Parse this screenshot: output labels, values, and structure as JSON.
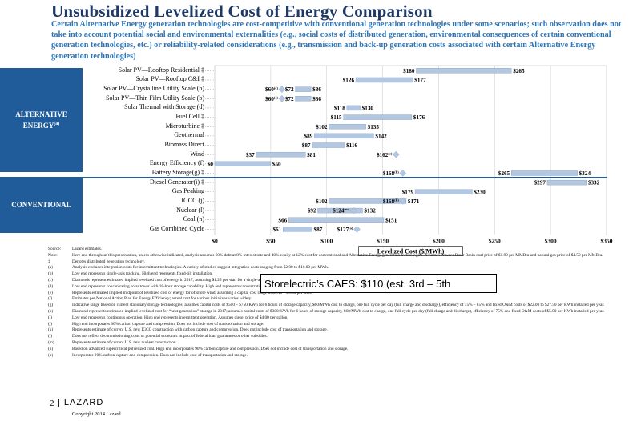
{
  "page": {
    "title": "Unsubsidized Levelized Cost of Energy Comparison",
    "subtitle": "Certain Alternative Energy generation technologies are cost-competitive with conventional generation technologies under some scenarios; such observation does not take into account potential social and environmental externalities (e.g., social costs of distributed generation, environmental consequences of certain conventional generation technologies, etc.) or reliability-related considerations (e.g., transmission and back-up generation costs associated with certain Alternative Energy generation technologies)",
    "section_alternative": "ALTERNATIVE ENERGY",
    "section_alternative_sup": "(a)",
    "section_conventional": "CONVENTIONAL",
    "callout": "Storelectric’s CAES: $110 (est. 3rd – 5th",
    "footer_page": "2",
    "footer_brand": "LAZARD",
    "copyright": "Copyright 2014 Lazard."
  },
  "notes": [
    {
      "k": "Source:",
      "t": "Lazard estimates."
    },
    {
      "k": "Note:",
      "t": "Here and throughout this presentation, unless otherwise indicated, analysis assumes 60% debt at 8% interest rate and 40% equity at 12% cost for conventional and Alternative Energy generation technologies. Assumes Powder River Basin coal price of $1.99 per MMBtu and natural gas price of $4.50 per MMBtu."
    },
    {
      "k": "‡",
      "t": "Denotes distributed generation technology."
    },
    {
      "k": "(a)",
      "t": "Analysis excludes integration costs for intermittent technologies. A variety of studies suggest integration costs ranging from $2.00 to $10.00 per MWh."
    },
    {
      "k": "(b)",
      "t": "Low end represents single-axis tracking. High end represents fixed-tilt installation."
    },
    {
      "k": "(c)",
      "t": "Diamonds represent estimated implied levelized cost of energy in 2017, assuming $1.25 per watt for a single-axis tracking system."
    },
    {
      "k": "(d)",
      "t": "Low end represents concentrating solar tower with 18-hour storage capability. High end represents concentrating solar tower with 10-hour storage capability."
    },
    {
      "k": "(e)",
      "t": "Represents estimated implied midpoint of levelized cost of energy for offshore wind, assuming a capital cost range of $3.10 – $5.50 per watt."
    },
    {
      "k": "(f)",
      "t": "Estimates per National Action Plan for Energy Efficiency; actual cost for various initiatives varies widely."
    },
    {
      "k": "(g)",
      "t": "Indicative range based on current stationary storage technologies; assumes capital costs of $500 – $750/KWh for 6 hours of storage capacity, $60/MWh cost to charge, one full cycle per day (full charge and discharge), efficiency of 75% – 85% and fixed O&M costs of $22.00 to $27.50 per KWh installed per year."
    },
    {
      "k": "(h)",
      "t": "Diamond represents estimated implied levelized cost for “next generation” storage in 2017; assumes capital costs of $300/KWh for 6 hours of storage capacity, $60/MWh cost to charge, one full cycle per day (full charge and discharge), efficiency of 75% and fixed O&M costs of $5.00 per KWh installed per year."
    },
    {
      "k": "(i)",
      "t": "Low end represents continuous operation. High end represents intermittent operation. Assumes diesel price of $4.00 per gallon."
    },
    {
      "k": "(j)",
      "t": "High end incorporates 90% carbon capture and compression. Does not include cost of transportation and storage."
    },
    {
      "k": "(k)",
      "t": "Represents estimate of current U.S. new IGCC construction with carbon capture and compression. Does not include cost of transportation and storage."
    },
    {
      "k": "(l)",
      "t": "Does not reflect decommissioning costs or potential economic impact of federal loan guarantees or other subsidies."
    },
    {
      "k": "(m)",
      "t": "Represents estimate of current U.S. new nuclear construction."
    },
    {
      "k": "(n)",
      "t": "Based on advanced supercritical pulverized coal. High end incorporates 90% carbon capture and compression. Does not include cost of transportation and storage."
    },
    {
      "k": "(o)",
      "t": "Incorporates 90% carbon capture and compression. Does not include cost of transportation and storage."
    }
  ],
  "colors": {
    "bar": "#b4c7e0",
    "bar_edge": "#7f9fc7",
    "diamond": "#b4c7e0",
    "section_bg": "#1f5c99",
    "title": "#1f3864",
    "subtitle": "#2e75b6",
    "divider": "#1f5c99"
  },
  "chart_data": {
    "type": "bar",
    "orientation": "horizontal-range",
    "xlabel": "Levelized Cost ($/MWh)",
    "xlim": [
      0,
      350
    ],
    "xticks": [
      "$0",
      "$50",
      "$100",
      "$150",
      "$200",
      "$250",
      "$300",
      "$350"
    ],
    "xtick_values": [
      0,
      50,
      100,
      150,
      200,
      250,
      300,
      350
    ],
    "grid": true,
    "rows": [
      {
        "label": "Solar PV—Rooftop Residential ‡",
        "low": 180,
        "high": 265,
        "low_label": "$180",
        "high_label": "$265",
        "section": "alternative"
      },
      {
        "label": "Solar PV—Rooftop C&I ‡",
        "low": 126,
        "high": 177,
        "low_label": "$126",
        "high_label": "$177",
        "section": "alternative"
      },
      {
        "label": "Solar PV—Crystalline Utility Scale (b)",
        "low": 72,
        "high": 86,
        "low_label": "$72",
        "high_label": "$86",
        "diamond": 60,
        "diamond_label": "$60",
        "diamond_note": "(c)",
        "section": "alternative"
      },
      {
        "label": "Solar PV—Thin Film Utility Scale (b)",
        "low": 72,
        "high": 86,
        "low_label": "$72",
        "high_label": "$86",
        "diamond": 60,
        "diamond_label": "$60",
        "diamond_note": "(c)",
        "section": "alternative"
      },
      {
        "label": "Solar Thermal with Storage (d)",
        "low": 118,
        "high": 130,
        "low_label": "$118",
        "high_label": "$130",
        "section": "alternative"
      },
      {
        "label": "Fuel Cell ‡",
        "low": 115,
        "high": 176,
        "low_label": "$115",
        "high_label": "$176",
        "section": "alternative"
      },
      {
        "label": "Microturbine ‡",
        "low": 102,
        "high": 135,
        "low_label": "$102",
        "high_label": "$135",
        "section": "alternative"
      },
      {
        "label": "Geothermal",
        "low": 89,
        "high": 142,
        "low_label": "$89",
        "high_label": "$142",
        "section": "alternative"
      },
      {
        "label": "Biomass Direct",
        "low": 87,
        "high": 116,
        "low_label": "$87",
        "high_label": "$116",
        "section": "alternative"
      },
      {
        "label": "Wind",
        "low": 37,
        "high": 81,
        "low_label": "$37",
        "high_label": "$81",
        "diamond": 162,
        "diamond_label": "$162",
        "diamond_note": "(e)",
        "section": "alternative"
      },
      {
        "label": "Energy Efficiency (f)",
        "low": 0,
        "high": 50,
        "low_label": "$0",
        "high_label": "$50",
        "section": "alternative"
      },
      {
        "label": "Battery Storage(g) ‡",
        "low": 265,
        "high": 324,
        "low_label": "$265",
        "high_label": "$324",
        "diamond": 168,
        "diamond_label": "$168",
        "diamond_note": "(h)",
        "section": "alternative"
      },
      {
        "label": "Diesel Generator(i) ‡",
        "low": 297,
        "high": 332,
        "low_label": "$297",
        "high_label": "$332",
        "section": "conventional"
      },
      {
        "label": "Gas Peaking",
        "low": 179,
        "high": 230,
        "low_label": "$179",
        "high_label": "$230",
        "section": "conventional"
      },
      {
        "label": "IGCC (j)",
        "low": 102,
        "high": 171,
        "low_label": "$102",
        "high_label": "$171",
        "diamond": 168,
        "diamond_label": "$168",
        "diamond_note": "(k)",
        "section": "conventional"
      },
      {
        "label": "Nuclear (l)",
        "low": 92,
        "high": 132,
        "low_label": "$92",
        "high_label": "$132",
        "diamond": 124,
        "diamond_label": "$124",
        "diamond_note": "(m)",
        "section": "conventional"
      },
      {
        "label": "Coal (n)",
        "low": 66,
        "high": 151,
        "low_label": "$66",
        "high_label": "$151",
        "section": "conventional"
      },
      {
        "label": "Gas Combined Cycle",
        "low": 61,
        "high": 87,
        "low_label": "$61",
        "high_label": "$87",
        "diamond": 127,
        "diamond_label": "$127",
        "diamond_note": "(o)",
        "section": "conventional"
      }
    ]
  }
}
